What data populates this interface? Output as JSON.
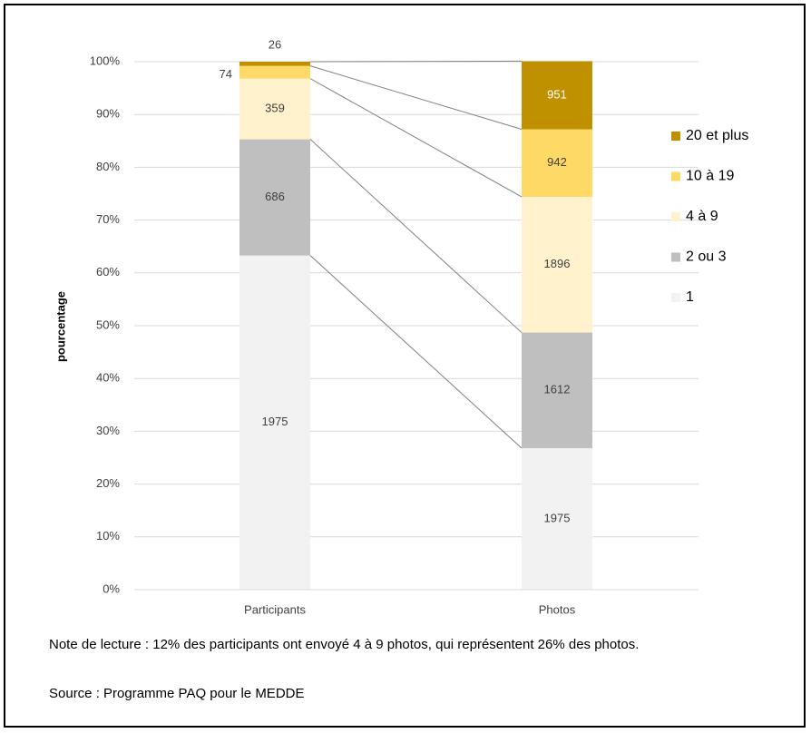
{
  "chart_data": {
    "type": "stacked_bar_100",
    "y_label": "pourcentage",
    "categories": [
      "Participants",
      "Photos"
    ],
    "series": [
      {
        "name": "1",
        "color": "#f2f2f2",
        "values": [
          63.3,
          26.8
        ],
        "counts": [
          1975,
          1975
        ]
      },
      {
        "name": "2 ou 3",
        "color": "#bfbfbf",
        "values": [
          22.0,
          21.9
        ],
        "counts": [
          686,
          1612
        ]
      },
      {
        "name": "4 à 9",
        "color": "#fff2cc",
        "values": [
          11.5,
          25.7
        ],
        "counts": [
          359,
          1896
        ]
      },
      {
        "name": "10 à 19",
        "color": "#ffd966",
        "values": [
          2.4,
          12.8
        ],
        "counts": [
          74,
          942
        ]
      },
      {
        "name": "20 et plus",
        "color": "#bf9000",
        "values": [
          0.8,
          12.9
        ],
        "counts": [
          26,
          951
        ]
      }
    ],
    "ylim": [
      0,
      100
    ],
    "yticks": [
      {
        "value": 0,
        "label": "0%"
      },
      {
        "value": 10,
        "label": "10%"
      },
      {
        "value": 20,
        "label": "20%"
      },
      {
        "value": 30,
        "label": "30%"
      },
      {
        "value": 40,
        "label": "40%"
      },
      {
        "value": 50,
        "label": "50%"
      },
      {
        "value": 60,
        "label": "60%"
      },
      {
        "value": 70,
        "label": "70%"
      },
      {
        "value": 80,
        "label": "80%"
      },
      {
        "value": 90,
        "label": "90%"
      },
      {
        "value": 100,
        "label": "100%"
      }
    ],
    "grid": true,
    "legend": "right",
    "note": "Note de lecture : 12% des participants ont envoyé 4 à 9 photos, qui représentent 26% des photos.",
    "source": "Source : Programme PAQ pour le MEDDE"
  }
}
